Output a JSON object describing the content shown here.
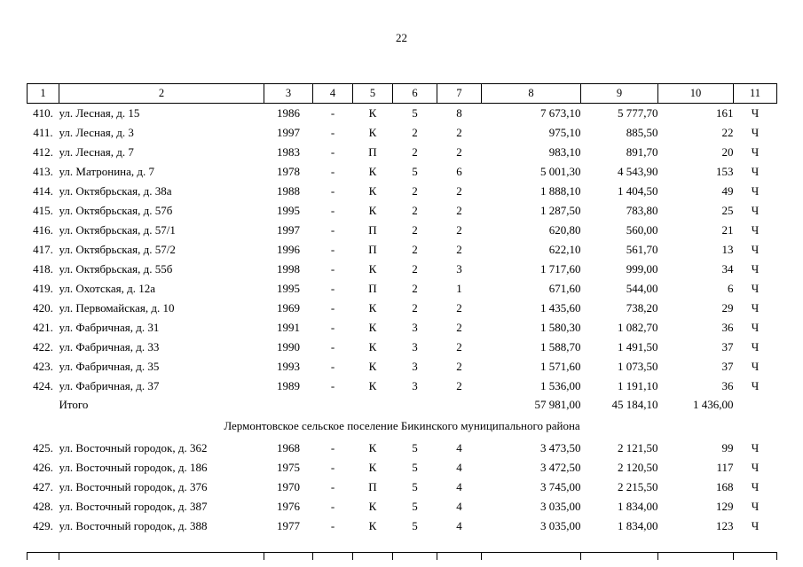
{
  "page": {
    "number": "22"
  },
  "table": {
    "headers": [
      "1",
      "2",
      "3",
      "4",
      "5",
      "6",
      "7",
      "8",
      "9",
      "10",
      "11"
    ],
    "rows_part1": [
      [
        "410.",
        "ул. Лесная, д. 15",
        "1986",
        "-",
        "К",
        "5",
        "8",
        "7 673,10",
        "5 777,70",
        "161",
        "Ч"
      ],
      [
        "411.",
        "ул. Лесная, д. 3",
        "1997",
        "-",
        "К",
        "2",
        "2",
        "975,10",
        "885,50",
        "22",
        "Ч"
      ],
      [
        "412.",
        "ул. Лесная, д. 7",
        "1983",
        "-",
        "П",
        "2",
        "2",
        "983,10",
        "891,70",
        "20",
        "Ч"
      ],
      [
        "413.",
        "ул. Матронина, д. 7",
        "1978",
        "-",
        "К",
        "5",
        "6",
        "5 001,30",
        "4 543,90",
        "153",
        "Ч"
      ],
      [
        "414.",
        "ул. Октябрьская, д. 38а",
        "1988",
        "-",
        "К",
        "2",
        "2",
        "1 888,10",
        "1 404,50",
        "49",
        "Ч"
      ],
      [
        "415.",
        "ул. Октябрьская, д. 57б",
        "1995",
        "-",
        "К",
        "2",
        "2",
        "1 287,50",
        "783,80",
        "25",
        "Ч"
      ],
      [
        "416.",
        "ул. Октябрьская, д. 57/1",
        "1997",
        "-",
        "П",
        "2",
        "2",
        "620,80",
        "560,00",
        "21",
        "Ч"
      ],
      [
        "417.",
        "ул. Октябрьская, д. 57/2",
        "1996",
        "-",
        "П",
        "2",
        "2",
        "622,10",
        "561,70",
        "13",
        "Ч"
      ],
      [
        "418.",
        "ул. Октябрьская, д. 55б",
        "1998",
        "-",
        "К",
        "2",
        "3",
        "1 717,60",
        "999,00",
        "34",
        "Ч"
      ],
      [
        "419.",
        "ул. Охотская, д. 12а",
        "1995",
        "-",
        "П",
        "2",
        "1",
        "671,60",
        "544,00",
        "6",
        "Ч"
      ],
      [
        "420.",
        "ул. Первомайская, д. 10",
        "1969",
        "-",
        "К",
        "2",
        "2",
        "1 435,60",
        "738,20",
        "29",
        "Ч"
      ],
      [
        "421.",
        "ул. Фабричная, д. 31",
        "1991",
        "-",
        "К",
        "3",
        "2",
        "1 580,30",
        "1 082,70",
        "36",
        "Ч"
      ],
      [
        "422.",
        "ул. Фабричная, д. 33",
        "1990",
        "-",
        "К",
        "3",
        "2",
        "1 588,70",
        "1 491,50",
        "37",
        "Ч"
      ],
      [
        "423.",
        "ул. Фабричная, д. 35",
        "1993",
        "-",
        "К",
        "3",
        "2",
        "1 571,60",
        "1 073,50",
        "37",
        "Ч"
      ],
      [
        "424.",
        "ул. Фабричная, д. 37",
        "1989",
        "-",
        "К",
        "3",
        "2",
        "1 536,00",
        "1 191,10",
        "36",
        "Ч"
      ]
    ],
    "totals_row": [
      "",
      "Итого",
      "",
      "",
      "",
      "",
      "",
      "57 981,00",
      "45 184,10",
      "1 436,00",
      ""
    ],
    "section_title": "Лермонтовское сельское поселение Бикинского муниципального района",
    "rows_part2": [
      [
        "425.",
        "ул. Восточный городок, д. 362",
        "1968",
        "-",
        "К",
        "5",
        "4",
        "3 473,50",
        "2 121,50",
        "99",
        "Ч"
      ],
      [
        "426.",
        "ул. Восточный городок, д. 186",
        "1975",
        "-",
        "К",
        "5",
        "4",
        "3 472,50",
        "2 120,50",
        "117",
        "Ч"
      ],
      [
        "427.",
        "ул. Восточный городок, д. 376",
        "1970",
        "-",
        "П",
        "5",
        "4",
        "3 745,00",
        "2 215,50",
        "168",
        "Ч"
      ],
      [
        "428.",
        "ул. Восточный городок, д. 387",
        "1976",
        "-",
        "К",
        "5",
        "4",
        "3 035,00",
        "1 834,00",
        "129",
        "Ч"
      ],
      [
        "429.",
        "ул. Восточный городок, д. 388",
        "1977",
        "-",
        "К",
        "5",
        "4",
        "3 035,00",
        "1 834,00",
        "123",
        "Ч"
      ]
    ]
  }
}
